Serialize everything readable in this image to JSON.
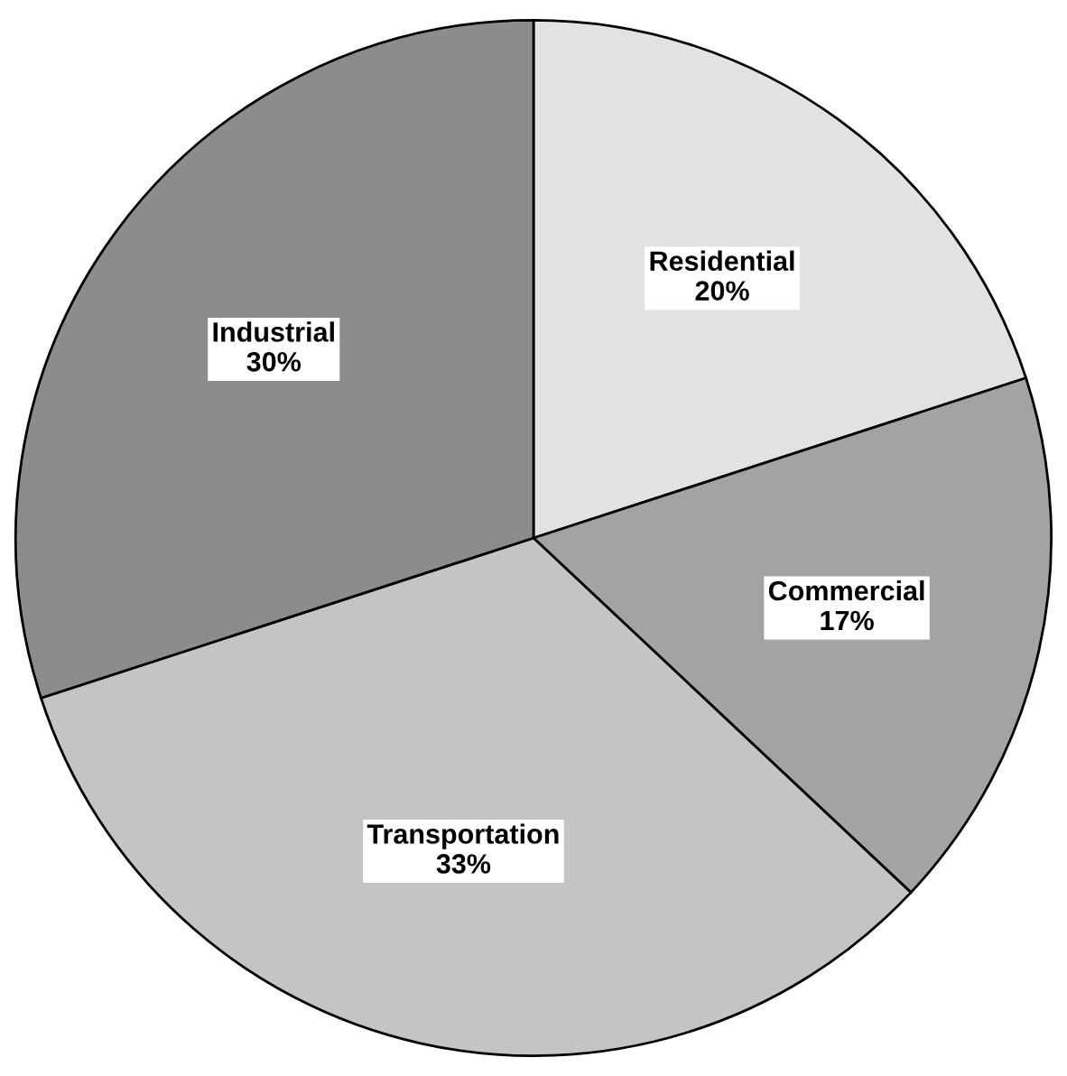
{
  "chart_data": {
    "type": "pie",
    "categories": [
      "Residential",
      "Commercial",
      "Transportation",
      "Industrial"
    ],
    "values": [
      20,
      17,
      33,
      30
    ],
    "value_labels": [
      "20%",
      "17%",
      "33%",
      "30%"
    ],
    "colors": [
      "#e2e2e2",
      "#a3a3a3",
      "#c4c4c4",
      "#8c8c8c"
    ]
  }
}
